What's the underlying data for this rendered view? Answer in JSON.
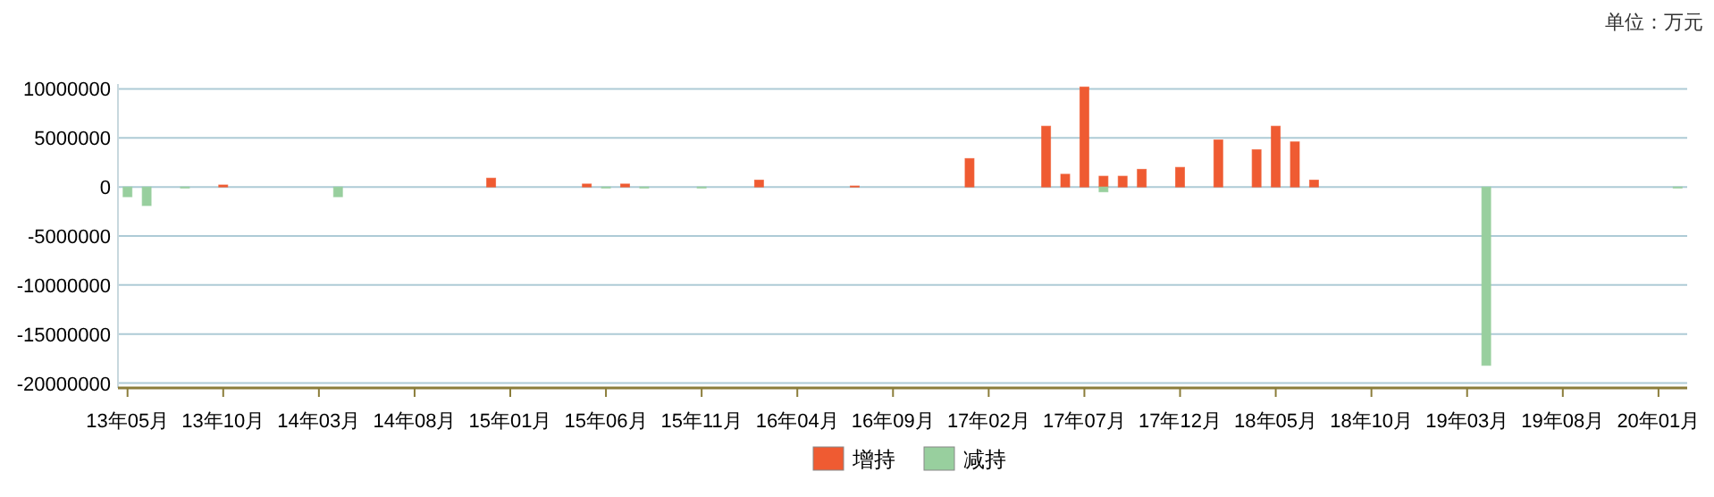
{
  "chart_data": {
    "type": "bar",
    "stacked": true,
    "annotations": [
      "单位：万元"
    ],
    "categories": [
      "13年05月",
      null,
      null,
      null,
      null,
      "13年10月",
      null,
      null,
      null,
      null,
      "14年03月",
      null,
      null,
      null,
      null,
      "14年08月",
      null,
      null,
      null,
      null,
      "15年01月",
      null,
      null,
      null,
      null,
      "15年06月",
      null,
      null,
      null,
      null,
      "15年11月",
      null,
      null,
      null,
      null,
      "16年04月",
      null,
      null,
      null,
      null,
      "16年09月",
      null,
      null,
      null,
      null,
      "17年02月",
      null,
      null,
      null,
      null,
      "17年07月",
      null,
      null,
      null,
      null,
      "17年12月",
      null,
      null,
      null,
      null,
      "18年05月",
      null,
      null,
      null,
      null,
      "18年10月",
      null,
      null,
      null,
      null,
      "19年03月",
      null,
      null,
      null,
      null,
      "19年08月",
      null,
      null,
      null,
      null,
      "20年01月",
      null
    ],
    "series": [
      {
        "name": "增持",
        "color": "#ef5b32",
        "values": [
          null,
          null,
          null,
          null,
          null,
          200000,
          null,
          null,
          null,
          null,
          null,
          null,
          null,
          null,
          null,
          null,
          null,
          null,
          null,
          900000,
          null,
          null,
          null,
          null,
          300000,
          null,
          300000,
          null,
          null,
          null,
          null,
          null,
          null,
          700000,
          null,
          null,
          null,
          null,
          100000,
          null,
          null,
          null,
          null,
          null,
          2900000,
          null,
          null,
          null,
          6200000,
          1300000,
          10200000,
          1100000,
          1100000,
          1800000,
          null,
          2000000,
          null,
          4800000,
          null,
          3800000,
          6200000,
          4600000,
          700000,
          null,
          null,
          null,
          null,
          null,
          null,
          null,
          null,
          null,
          null,
          null,
          null,
          null,
          null,
          null,
          null,
          null,
          null,
          null
        ]
      },
      {
        "name": "减持",
        "color": "#98cf9e",
        "values": [
          -1000000,
          -1900000,
          null,
          -100000,
          null,
          null,
          null,
          null,
          null,
          null,
          null,
          -1000000,
          null,
          null,
          null,
          null,
          null,
          null,
          null,
          null,
          null,
          null,
          null,
          null,
          null,
          -100000,
          null,
          -100000,
          null,
          null,
          -100000,
          null,
          null,
          null,
          null,
          null,
          null,
          null,
          null,
          null,
          null,
          null,
          null,
          null,
          null,
          null,
          null,
          null,
          null,
          null,
          null,
          -500000,
          null,
          null,
          null,
          null,
          null,
          null,
          null,
          null,
          null,
          null,
          null,
          null,
          null,
          null,
          null,
          null,
          null,
          null,
          null,
          -18200000,
          null,
          null,
          null,
          null,
          null,
          null,
          null,
          null,
          null,
          -100000
        ]
      }
    ],
    "ylim": [
      -20500000,
      10500000
    ],
    "yticks": [
      -20000000,
      -15000000,
      -10000000,
      -5000000,
      0,
      5000000,
      10000000
    ],
    "grid": "y",
    "legend": "bottom"
  }
}
